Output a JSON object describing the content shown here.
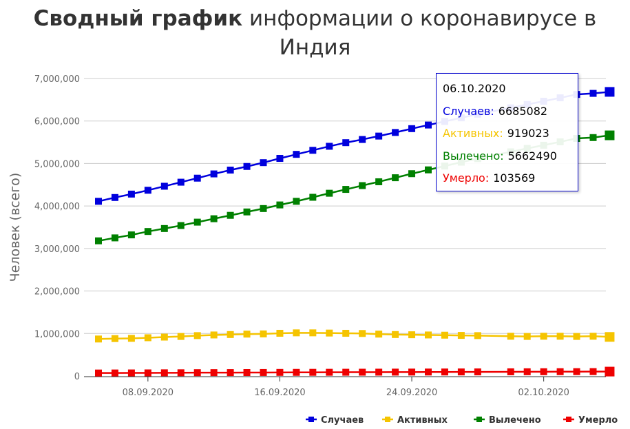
{
  "title": {
    "bold": "Сводный график",
    "rest": " информации о коронавирусе в Индия"
  },
  "chart_data": {
    "type": "line",
    "ylabel": "Человек (всего)",
    "ylim": [
      0,
      7000000
    ],
    "yticks": [
      "0",
      "1,000,000",
      "2,000,000",
      "3,000,000",
      "4,000,000",
      "5,000,000",
      "6,000,000",
      "7,000,000"
    ],
    "ytick_values": [
      0,
      1000000,
      2000000,
      3000000,
      4000000,
      5000000,
      6000000,
      7000000
    ],
    "grid": true,
    "legend_position": "bottom-right",
    "xtick_labels": [
      "08.09.2020",
      "16.09.2020",
      "24.09.2020",
      "02.10.2020"
    ],
    "x": [
      "05.09.2020",
      "06.09.2020",
      "07.09.2020",
      "08.09.2020",
      "09.09.2020",
      "10.09.2020",
      "11.09.2020",
      "12.09.2020",
      "13.09.2020",
      "14.09.2020",
      "15.09.2020",
      "16.09.2020",
      "17.09.2020",
      "18.09.2020",
      "19.09.2020",
      "20.09.2020",
      "21.09.2020",
      "22.09.2020",
      "23.09.2020",
      "24.09.2020",
      "25.09.2020",
      "26.09.2020",
      "27.09.2020",
      "28.09.2020",
      "30.09.2020",
      "01.10.2020",
      "02.10.2020",
      "03.10.2020",
      "04.10.2020",
      "05.10.2020",
      "06.10.2020"
    ],
    "series": [
      {
        "name": "Случаев",
        "color": "#0000dd",
        "values": [
          4110000,
          4200000,
          4280000,
          4370000,
          4465000,
          4560000,
          4655000,
          4755000,
          4845000,
          4930000,
          5020000,
          5120000,
          5215000,
          5310000,
          5405000,
          5490000,
          5565000,
          5645000,
          5730000,
          5820000,
          5905000,
          5990000,
          6075000,
          6160000,
          6310000,
          6390000,
          6465000,
          6545000,
          6625000,
          6650000,
          6685082
        ]
      },
      {
        "name": "Активных",
        "color": "#f5c400",
        "values": [
          870000,
          880000,
          885000,
          900000,
          915000,
          930000,
          950000,
          965000,
          975000,
          985000,
          990000,
          1005000,
          1015000,
          1015000,
          1010000,
          1005000,
          1000000,
          985000,
          975000,
          970000,
          965000,
          960000,
          955000,
          950000,
          935000,
          930000,
          935000,
          935000,
          930000,
          935000,
          919023
        ]
      },
      {
        "name": "Вылечено",
        "color": "#008000",
        "values": [
          3180000,
          3250000,
          3320000,
          3400000,
          3470000,
          3540000,
          3620000,
          3700000,
          3780000,
          3860000,
          3940000,
          4025000,
          4110000,
          4205000,
          4300000,
          4390000,
          4480000,
          4570000,
          4665000,
          4760000,
          4850000,
          4940000,
          5030000,
          5115000,
          5275000,
          5355000,
          5430000,
          5510000,
          5590000,
          5610000,
          5662490
        ]
      },
      {
        "name": "Умерло",
        "color": "#ee0000",
        "values": [
          70000,
          71000,
          72000,
          73000,
          75000,
          76000,
          78000,
          79000,
          80000,
          81000,
          82000,
          84000,
          85000,
          86000,
          87000,
          88000,
          89000,
          90000,
          91000,
          92000,
          93000,
          94000,
          95000,
          96000,
          98000,
          99000,
          100000,
          101000,
          102000,
          103000,
          103569
        ]
      }
    ]
  },
  "tooltip": {
    "date": "06.10.2020",
    "rows": [
      {
        "label": "Случаев:",
        "value": "6685082",
        "color": "#0000dd"
      },
      {
        "label": "Активных:",
        "value": "919023",
        "color": "#f5c400"
      },
      {
        "label": "Вылечено:",
        "value": "5662490",
        "color": "#008000"
      },
      {
        "label": "Умерло:",
        "value": "103569",
        "color": "#ee0000"
      }
    ]
  }
}
